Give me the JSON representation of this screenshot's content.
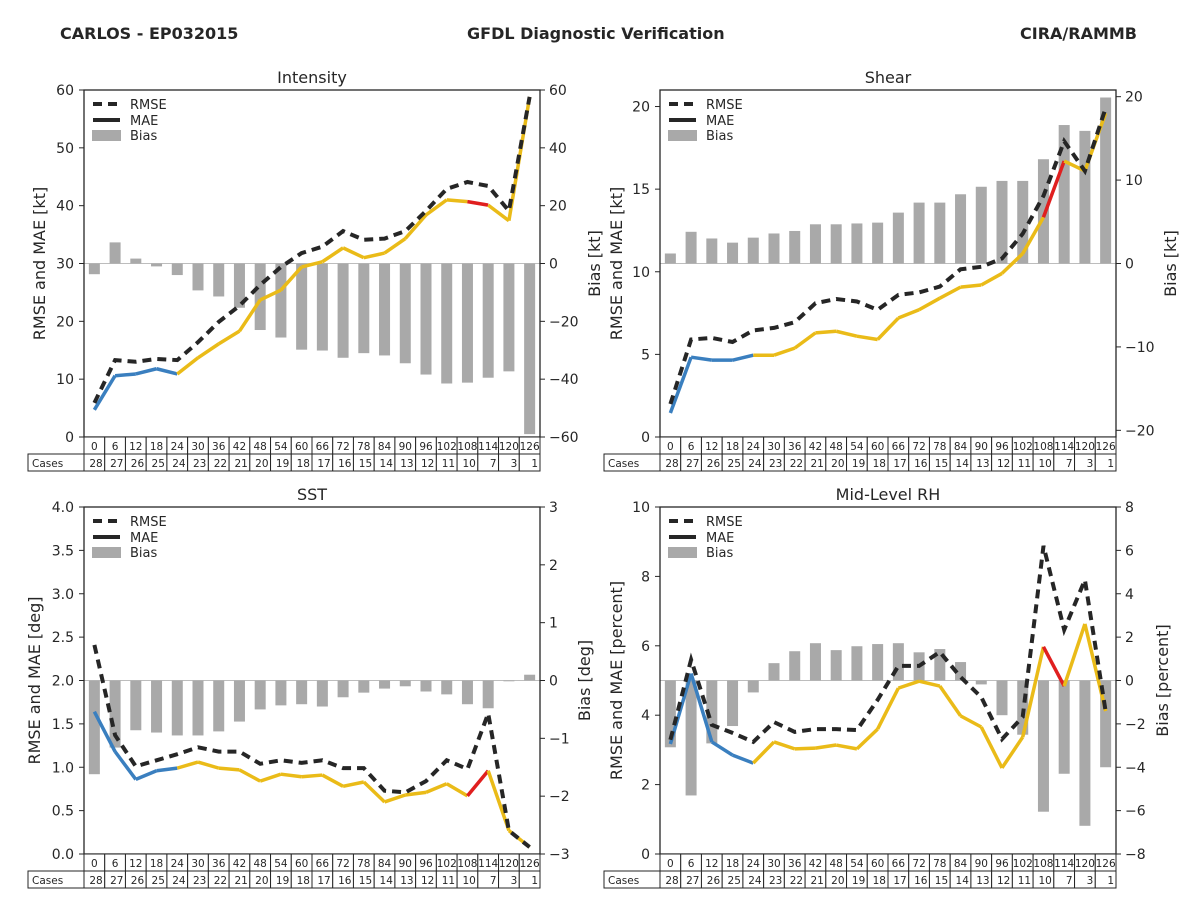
{
  "header": {
    "left": "CARLOS - EP032015",
    "center": "GFDL Diagnostic Verification",
    "right": "CIRA/RAMMB"
  },
  "colors": {
    "bias_bar": "#a9a9a9",
    "rmse_line": "#262626",
    "early": "#3a7fbf",
    "mid": "#eabb18",
    "highlight": "#e01f1f"
  },
  "legend": {
    "rmse": "RMSE",
    "mae": "MAE",
    "bias": "Bias",
    "placement": "top-left"
  },
  "table": {
    "cases_label": "Cases",
    "hours": [
      "0",
      "6",
      "12",
      "18",
      "24",
      "30",
      "36",
      "42",
      "48",
      "54",
      "60",
      "66",
      "72",
      "78",
      "84",
      "90",
      "96",
      "102",
      "108",
      "114",
      "120",
      "126"
    ],
    "cases": [
      "28",
      "27",
      "26",
      "25",
      "24",
      "23",
      "22",
      "21",
      "20",
      "19",
      "18",
      "17",
      "16",
      "15",
      "14",
      "13",
      "12",
      "11",
      "10",
      "7",
      "3",
      "1"
    ]
  },
  "segments": {
    "early_until_hour": 24,
    "highlight_from_hour": 108,
    "highlight_to_hour": 114
  },
  "chart_data": [
    {
      "type": "bar+line",
      "title": "Intensity",
      "ylabel": "RMSE and MAE [kt]",
      "y2label": "Bias [kt]",
      "ylim": [
        0,
        60
      ],
      "yticks": [
        "0",
        "10",
        "20",
        "30",
        "40",
        "50",
        "60"
      ],
      "y2lim": [
        -60,
        60
      ],
      "y2ticks": [
        "−60",
        "−40",
        "−20",
        "0",
        "20",
        "40",
        "60"
      ],
      "y2tickvals": [
        -60,
        -40,
        -20,
        0,
        20,
        40,
        60
      ],
      "yticksvals": [
        0,
        10,
        20,
        30,
        40,
        50,
        60
      ],
      "x": [
        0,
        6,
        12,
        18,
        24,
        30,
        36,
        42,
        48,
        54,
        60,
        66,
        72,
        78,
        84,
        90,
        96,
        102,
        108,
        114,
        120,
        126
      ],
      "series": [
        {
          "name": "RMSE",
          "values": [
            5.9,
            13.3,
            13.0,
            13.5,
            13.3,
            16.4,
            19.9,
            22.7,
            26.3,
            29.4,
            31.8,
            32.9,
            35.6,
            34.1,
            34.3,
            35.6,
            39.1,
            42.9,
            44.1,
            43.4,
            39.1,
            58.8
          ]
        },
        {
          "name": "MAE",
          "values": [
            4.7,
            10.6,
            10.9,
            11.8,
            10.9,
            13.7,
            16.1,
            18.3,
            23.7,
            25.4,
            29.4,
            30.3,
            32.7,
            31.0,
            31.8,
            34.3,
            38.4,
            41.0,
            40.7,
            40.1,
            37.4,
            58.8
          ]
        },
        {
          "name": "Bias",
          "values": [
            -3.7,
            7.3,
            1.7,
            -1.0,
            -4.0,
            -9.3,
            -11.4,
            -15.3,
            -23.0,
            -25.6,
            -29.8,
            -30.1,
            -32.6,
            -31.0,
            -31.8,
            -34.5,
            -38.4,
            -41.5,
            -41.2,
            -39.5,
            -37.3,
            -59.0
          ]
        }
      ]
    },
    {
      "type": "bar+line",
      "title": "Shear",
      "ylabel": "RMSE and MAE [kt]",
      "y2label": "Bias [kt]",
      "ylim": [
        0,
        21
      ],
      "yticks": [
        "0",
        "5",
        "10",
        "15",
        "20"
      ],
      "yticksvals": [
        0,
        5,
        10,
        15,
        20
      ],
      "y2lim": [
        -20.8,
        20.8
      ],
      "y2ticks": [
        "−20",
        "−10",
        "0",
        "10",
        "20"
      ],
      "y2tickvals": [
        -20,
        -10,
        0,
        10,
        20
      ],
      "x": [
        0,
        6,
        12,
        18,
        24,
        30,
        36,
        42,
        48,
        54,
        60,
        66,
        72,
        78,
        84,
        90,
        96,
        102,
        108,
        114,
        120,
        126
      ],
      "series": [
        {
          "name": "RMSE",
          "values": [
            2.0,
            5.9,
            6.0,
            5.75,
            6.45,
            6.6,
            6.95,
            8.1,
            8.35,
            8.2,
            7.7,
            8.6,
            8.75,
            9.1,
            10.15,
            10.3,
            10.8,
            12.3,
            14.6,
            17.9,
            16.1,
            19.9
          ]
        },
        {
          "name": "MAE",
          "values": [
            1.45,
            4.83,
            4.65,
            4.65,
            4.95,
            4.95,
            5.38,
            6.3,
            6.4,
            6.1,
            5.9,
            7.2,
            7.7,
            8.4,
            9.07,
            9.2,
            9.9,
            11.1,
            13.3,
            16.7,
            16.1,
            19.6
          ]
        },
        {
          "name": "Bias",
          "values": [
            1.2,
            3.8,
            3.0,
            2.5,
            3.1,
            3.6,
            3.9,
            4.7,
            4.7,
            4.8,
            4.9,
            6.1,
            7.3,
            7.3,
            8.3,
            9.2,
            9.9,
            9.9,
            12.5,
            16.6,
            15.9,
            19.9
          ]
        }
      ]
    },
    {
      "type": "bar+line",
      "title": "SST",
      "ylabel": "RMSE and MAE [deg]",
      "y2label": "Bias [deg]",
      "ylim": [
        0,
        4.0
      ],
      "yticks": [
        "0.0",
        "0.5",
        "1.0",
        "1.5",
        "2.0",
        "2.5",
        "3.0",
        "3.5",
        "4.0"
      ],
      "yticksvals": [
        0,
        0.5,
        1.0,
        1.5,
        2.0,
        2.5,
        3.0,
        3.5,
        4.0
      ],
      "y2lim": [
        -3,
        3
      ],
      "y2ticks": [
        "−3",
        "−2",
        "−1",
        "0",
        "1",
        "2",
        "3"
      ],
      "y2tickvals": [
        -3,
        -2,
        -1,
        0,
        1,
        2,
        3
      ],
      "x": [
        0,
        6,
        12,
        18,
        24,
        30,
        36,
        42,
        48,
        54,
        60,
        66,
        72,
        78,
        84,
        90,
        96,
        102,
        108,
        114,
        120,
        126
      ],
      "series": [
        {
          "name": "RMSE",
          "values": [
            2.41,
            1.37,
            1.01,
            1.08,
            1.15,
            1.23,
            1.18,
            1.18,
            1.04,
            1.08,
            1.05,
            1.08,
            0.99,
            0.99,
            0.73,
            0.71,
            0.84,
            1.08,
            0.98,
            1.62,
            0.27,
            0.08
          ]
        },
        {
          "name": "MAE",
          "values": [
            1.64,
            1.18,
            0.86,
            0.96,
            0.99,
            1.06,
            0.99,
            0.97,
            0.84,
            0.92,
            0.89,
            0.91,
            0.78,
            0.83,
            0.6,
            0.68,
            0.71,
            0.81,
            0.67,
            0.96,
            0.27,
            0.08
          ]
        },
        {
          "name": "Bias",
          "values": [
            -1.62,
            -1.16,
            -0.86,
            -0.9,
            -0.95,
            -0.95,
            -0.88,
            -0.71,
            -0.5,
            -0.43,
            -0.41,
            -0.45,
            -0.29,
            -0.21,
            -0.14,
            -0.1,
            -0.19,
            -0.24,
            -0.41,
            -0.48,
            -0.01,
            0.1
          ]
        }
      ]
    },
    {
      "type": "bar+line",
      "title": "Mid-Level RH",
      "ylabel": "RMSE and MAE [percent]",
      "y2label": "Bias [percent]",
      "ylim": [
        0,
        10
      ],
      "yticks": [
        "0",
        "2",
        "4",
        "6",
        "8",
        "10"
      ],
      "yticksvals": [
        0,
        2,
        4,
        6,
        8,
        10
      ],
      "y2lim": [
        -8,
        8
      ],
      "y2ticks": [
        "−8",
        "−6",
        "−4",
        "−2",
        "0",
        "2",
        "4",
        "6",
        "8"
      ],
      "y2tickvals": [
        -8,
        -6,
        -4,
        -2,
        0,
        2,
        4,
        6,
        8
      ],
      "x": [
        0,
        6,
        12,
        18,
        24,
        30,
        36,
        42,
        48,
        54,
        60,
        66,
        72,
        78,
        84,
        90,
        96,
        102,
        108,
        114,
        120,
        126
      ],
      "series": [
        {
          "name": "RMSE",
          "values": [
            3.29,
            5.6,
            3.72,
            3.49,
            3.23,
            3.8,
            3.52,
            3.6,
            3.6,
            3.57,
            4.44,
            5.42,
            5.42,
            5.82,
            5.1,
            4.52,
            3.31,
            3.95,
            8.88,
            6.46,
            7.9,
            4.12
          ]
        },
        {
          "name": "MAE",
          "values": [
            3.17,
            5.2,
            3.23,
            2.85,
            2.62,
            3.23,
            3.03,
            3.05,
            3.14,
            3.03,
            3.6,
            4.78,
            4.98,
            4.84,
            3.98,
            3.66,
            2.48,
            3.37,
            5.97,
            4.84,
            6.63,
            4.12
          ]
        },
        {
          "name": "Bias",
          "values": [
            -3.08,
            -5.3,
            -2.9,
            -2.1,
            -0.55,
            0.8,
            1.35,
            1.72,
            1.4,
            1.58,
            1.68,
            1.72,
            1.3,
            1.45,
            0.85,
            -0.18,
            -1.6,
            -2.5,
            -6.05,
            -4.3,
            -6.7,
            -4.0
          ]
        }
      ]
    }
  ]
}
